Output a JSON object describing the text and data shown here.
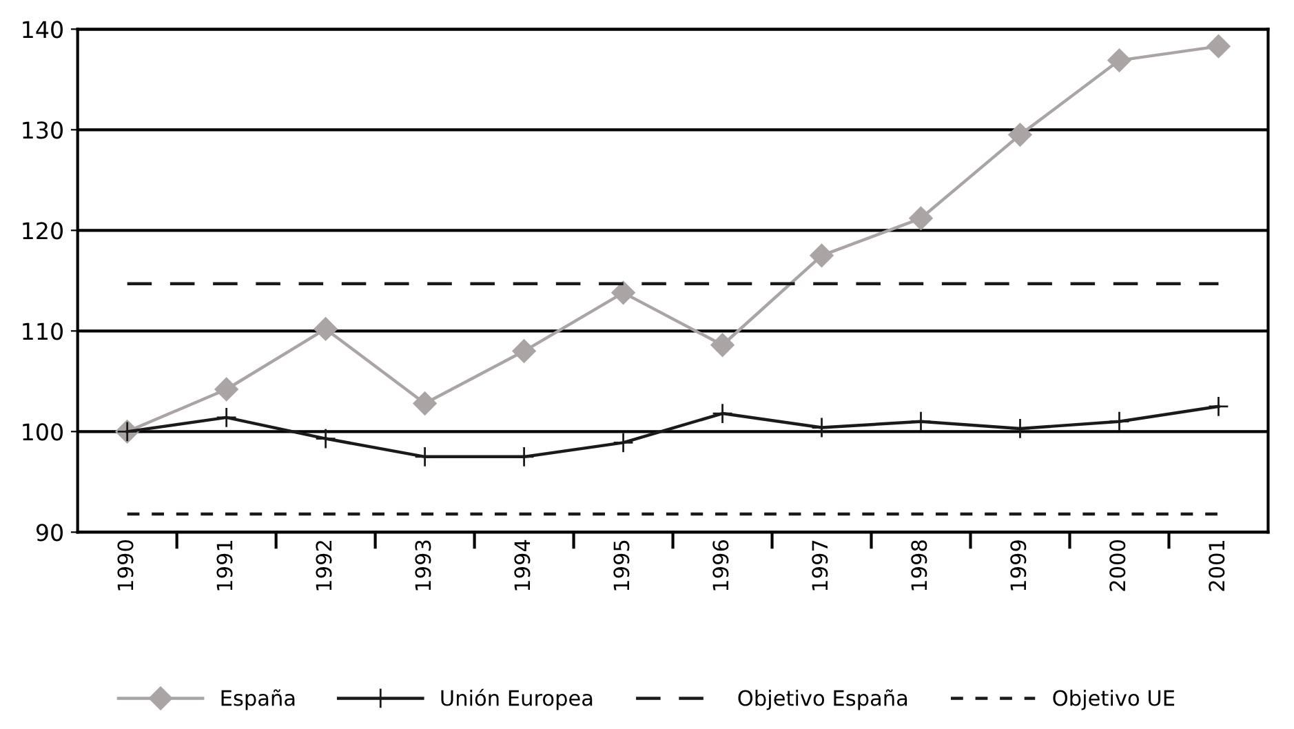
{
  "chart_data": {
    "type": "line",
    "categories": [
      "1990",
      "1991",
      "1992",
      "1993",
      "1994",
      "1995",
      "1996",
      "1997",
      "1998",
      "1999",
      "2000",
      "2001"
    ],
    "series": [
      {
        "name": "España",
        "color": "#aaa4a4",
        "marker": "diamond",
        "line_style": "solid",
        "values": [
          100,
          104.2,
          110.2,
          102.8,
          108,
          113.8,
          108.6,
          117.5,
          121.2,
          129.5,
          136.9,
          138.3
        ]
      },
      {
        "name": "Unión Europea",
        "color": "#1a1a1a",
        "marker": "cross",
        "line_style": "solid",
        "values": [
          100,
          101.4,
          99.3,
          97.5,
          97.5,
          98.9,
          101.8,
          100.4,
          101,
          100.3,
          101,
          102.5
        ]
      },
      {
        "name": "Objetivo España",
        "color": "#1a1a1a",
        "marker": "none",
        "line_style": "dashed",
        "values": [
          114.7,
          114.7,
          114.7,
          114.7,
          114.7,
          114.7,
          114.7,
          114.7,
          114.7,
          114.7,
          114.7,
          114.7
        ]
      },
      {
        "name": "Objetivo UE",
        "color": "#1a1a1a",
        "marker": "none",
        "line_style": "dotted",
        "values": [
          91.8,
          91.8,
          91.8,
          91.8,
          91.8,
          91.8,
          91.8,
          91.8,
          91.8,
          91.8,
          91.8,
          91.8
        ]
      }
    ],
    "ylim": [
      90,
      140
    ],
    "yticks": [
      90,
      100,
      110,
      120,
      130,
      140
    ],
    "grid": "y",
    "legend": "bottom"
  }
}
